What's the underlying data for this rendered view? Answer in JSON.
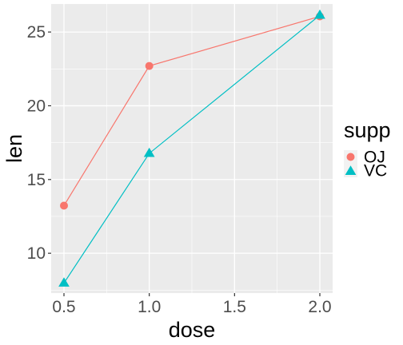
{
  "chart_data": {
    "type": "line",
    "xlabel": "dose",
    "ylabel": "len",
    "x": [
      0.5,
      1.0,
      2.0
    ],
    "xlim": [
      0.425,
      2.075
    ],
    "ylim": [
      7.3,
      26.9
    ],
    "x_ticks": [
      0.5,
      1.0,
      1.5,
      2.0
    ],
    "x_tick_labels": [
      "0.5",
      "1.0",
      "1.5",
      "2.0"
    ],
    "y_ticks": [
      10,
      15,
      20,
      25
    ],
    "y_tick_labels": [
      "10",
      "15",
      "20",
      "25"
    ],
    "grid": true,
    "legend": {
      "title": "supp",
      "position": "right"
    },
    "series": [
      {
        "name": "OJ",
        "values": [
          13.23,
          22.7,
          26.06
        ],
        "color": "#F8766D",
        "marker": "circle"
      },
      {
        "name": "VC",
        "values": [
          7.98,
          16.77,
          26.14
        ],
        "color": "#00BFC4",
        "marker": "triangle"
      }
    ],
    "panel_background": "#EBEBEB",
    "grid_color": "#FFFFFF"
  }
}
